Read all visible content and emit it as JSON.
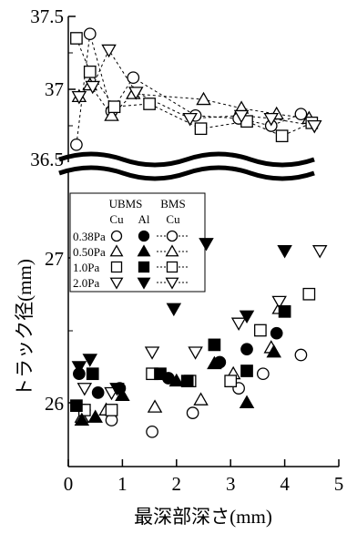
{
  "chart_data": {
    "type": "scatter",
    "xlabel": "最深部深さ(mm)",
    "ylabel": "トラック径(mm)",
    "x_ticks": [
      "0",
      "1",
      "2",
      "3",
      "4",
      "5"
    ],
    "xlim": [
      0,
      5
    ],
    "upper_panel": {
      "ylim": [
        36.5,
        37.5
      ],
      "y_ticks": [
        "37.5",
        "37",
        "36.5"
      ]
    },
    "lower_panel": {
      "ylim": [
        25.55,
        27.6
      ],
      "y_ticks": [
        "27",
        "26"
      ]
    },
    "legend": {
      "header_ubms": "UBMS",
      "header_bms": "BMS",
      "sub_cu1": "Cu",
      "sub_al": "Al",
      "sub_cu2": "Cu",
      "rows": [
        "0.38Pa",
        "0.50Pa",
        "1.0Pa",
        "2.0Pa"
      ]
    },
    "series": [
      {
        "name": "0.38Pa",
        "group": "UBMS Cu",
        "shape": "circle",
        "filled": false,
        "panel": "lower",
        "x": [
          0.3,
          0.8,
          1.55,
          2.3,
          3.15,
          3.6,
          4.3
        ],
        "y": [
          25.95,
          25.88,
          25.8,
          25.93,
          26.1,
          26.2,
          26.33
        ]
      },
      {
        "name": "0.50Pa",
        "group": "UBMS Cu",
        "shape": "triangle",
        "filled": false,
        "panel": "lower",
        "x": [
          0.25,
          0.7,
          1.6,
          2.45,
          3.05,
          3.75,
          3.9
        ],
        "y": [
          25.9,
          25.95,
          25.97,
          26.02,
          26.2,
          26.38,
          26.65
        ]
      },
      {
        "name": "1.0Pa",
        "group": "UBMS Cu",
        "shape": "square",
        "filled": false,
        "panel": "lower",
        "x": [
          0.3,
          0.8,
          1.55,
          2.25,
          3.0,
          3.55,
          4.45
        ],
        "y": [
          25.95,
          25.95,
          26.2,
          26.15,
          26.15,
          26.5,
          26.75
        ]
      },
      {
        "name": "2.0Pa",
        "group": "UBMS Cu",
        "shape": "triangle-down",
        "filled": false,
        "panel": "lower",
        "x": [
          0.3,
          0.8,
          1.55,
          2.35,
          3.15,
          3.9,
          4.65
        ],
        "y": [
          26.1,
          26.07,
          26.35,
          26.35,
          26.55,
          26.7,
          27.05
        ]
      },
      {
        "name": "0.38Pa",
        "group": "UBMS Al",
        "shape": "circle",
        "filled": true,
        "panel": "lower",
        "x": [
          0.2,
          0.55,
          0.95,
          1.85,
          2.8,
          3.3,
          3.85
        ],
        "y": [
          26.2,
          26.07,
          26.1,
          26.17,
          26.28,
          26.37,
          26.48
        ]
      },
      {
        "name": "0.50Pa",
        "group": "UBMS Al",
        "shape": "triangle",
        "filled": true,
        "panel": "lower",
        "x": [
          0.25,
          0.5,
          1.0,
          2.0,
          2.7,
          3.3,
          3.8
        ],
        "y": [
          25.88,
          25.9,
          26.05,
          26.15,
          26.27,
          26.0,
          26.35
        ]
      },
      {
        "name": "1.0Pa",
        "group": "UBMS Al",
        "shape": "square",
        "filled": true,
        "panel": "lower",
        "x": [
          0.15,
          0.45,
          1.7,
          2.2,
          2.7,
          3.3,
          4.0
        ],
        "y": [
          25.98,
          26.2,
          26.2,
          26.15,
          26.4,
          26.22,
          26.63
        ]
      },
      {
        "name": "2.0Pa",
        "group": "UBMS Al",
        "shape": "triangle-down",
        "filled": true,
        "panel": "lower",
        "x": [
          0.2,
          0.4,
          0.9,
          1.95,
          2.55,
          3.3,
          4.0
        ],
        "y": [
          26.25,
          26.3,
          26.1,
          26.65,
          27.1,
          26.6,
          27.05
        ]
      },
      {
        "name": "0.38Pa",
        "group": "BMS Cu",
        "shape": "circle",
        "filled": false,
        "panel": "upper",
        "dashed": true,
        "x": [
          0.15,
          0.4,
          0.8,
          1.2,
          2.35,
          3.15,
          3.75,
          4.3
        ],
        "y": [
          36.62,
          37.38,
          36.85,
          37.08,
          36.82,
          36.8,
          36.75,
          36.83
        ]
      },
      {
        "name": "0.50Pa",
        "group": "BMS Cu",
        "shape": "triangle",
        "filled": false,
        "panel": "upper",
        "dashed": true,
        "x": [
          0.2,
          0.4,
          0.8,
          1.2,
          2.5,
          3.2,
          3.85,
          4.45
        ],
        "y": [
          36.95,
          37.03,
          36.82,
          36.97,
          36.93,
          36.87,
          36.83,
          36.8
        ]
      },
      {
        "name": "1.0Pa",
        "group": "BMS Cu",
        "shape": "square",
        "filled": false,
        "panel": "upper",
        "dashed": true,
        "x": [
          0.15,
          0.4,
          0.85,
          1.5,
          2.45,
          3.3,
          3.95,
          4.5
        ],
        "y": [
          37.35,
          37.12,
          36.88,
          36.9,
          36.73,
          36.78,
          36.68,
          36.77
        ]
      },
      {
        "name": "2.0Pa",
        "group": "BMS Cu",
        "shape": "triangle-down",
        "filled": false,
        "panel": "upper",
        "dashed": true,
        "x": [
          0.2,
          0.45,
          0.75,
          1.25,
          2.25,
          3.2,
          3.75,
          4.55
        ],
        "y": [
          36.95,
          37.02,
          37.27,
          36.98,
          36.8,
          36.82,
          36.8,
          36.75
        ]
      }
    ]
  }
}
